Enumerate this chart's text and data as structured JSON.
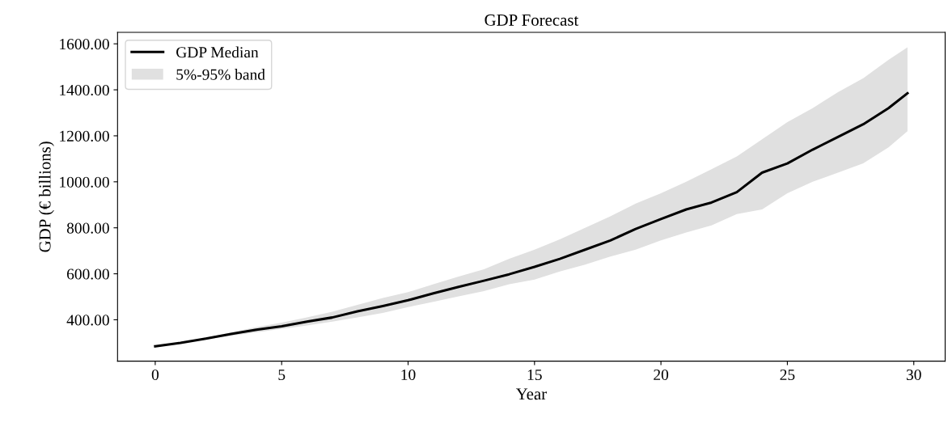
{
  "chart_data": {
    "type": "line",
    "title": "GDP Forecast",
    "xlabel": "Year",
    "ylabel": "GDP (€ billions)",
    "x": [
      0,
      1,
      2,
      3,
      4,
      5,
      6,
      7,
      8,
      9,
      10,
      11,
      12,
      13,
      14,
      15,
      16,
      17,
      18,
      19,
      20,
      21,
      22,
      23,
      24,
      25,
      26,
      27,
      28,
      29,
      29.75
    ],
    "series": [
      {
        "name": "GDP Median",
        "color": "#000000",
        "values": [
          285,
          300,
          318,
          338,
          357,
          372,
          392,
          410,
          437,
          460,
          485,
          515,
          543,
          570,
          598,
          630,
          665,
          705,
          745,
          795,
          838,
          880,
          910,
          955,
          1040,
          1080,
          1140,
          1195,
          1250,
          1320,
          1385
        ]
      },
      {
        "name": "5%-95% band",
        "type": "area",
        "color": "#e0e0e0",
        "values": [
          null,
          null,
          null,
          null,
          null,
          null,
          null,
          null,
          null,
          null,
          null,
          null,
          null,
          null,
          null,
          null,
          null,
          null,
          null,
          null,
          null,
          null,
          null,
          null,
          null,
          null,
          null,
          null,
          null,
          null,
          null
        ],
        "lower": [
          285,
          298,
          315,
          330,
          345,
          360,
          375,
          392,
          410,
          430,
          455,
          478,
          502,
          525,
          555,
          575,
          610,
          640,
          675,
          705,
          745,
          780,
          810,
          860,
          880,
          950,
          1000,
          1040,
          1080,
          1150,
          1220
        ],
        "upper": [
          285,
          302,
          322,
          345,
          368,
          388,
          410,
          435,
          465,
          495,
          520,
          555,
          588,
          620,
          665,
          705,
          750,
          800,
          850,
          905,
          950,
          1000,
          1055,
          1110,
          1185,
          1260,
          1320,
          1390,
          1450,
          1530,
          1585
        ]
      }
    ],
    "xlim": [
      -1.49,
      31.24
    ],
    "ylim": [
      220,
      1650
    ],
    "xticks": [
      0,
      5,
      10,
      15,
      20,
      25,
      30
    ],
    "yticks": [
      {
        "value": 400,
        "label": "400.00"
      },
      {
        "value": 600,
        "label": "600.00"
      },
      {
        "value": 800,
        "label": "800.00"
      },
      {
        "value": 1000,
        "label": "1000.00"
      },
      {
        "value": 1200,
        "label": "1200.00"
      },
      {
        "value": 1400,
        "label": "1400.00"
      },
      {
        "value": 1600,
        "label": "1600.00"
      }
    ],
    "grid": false,
    "legend": "top left"
  }
}
